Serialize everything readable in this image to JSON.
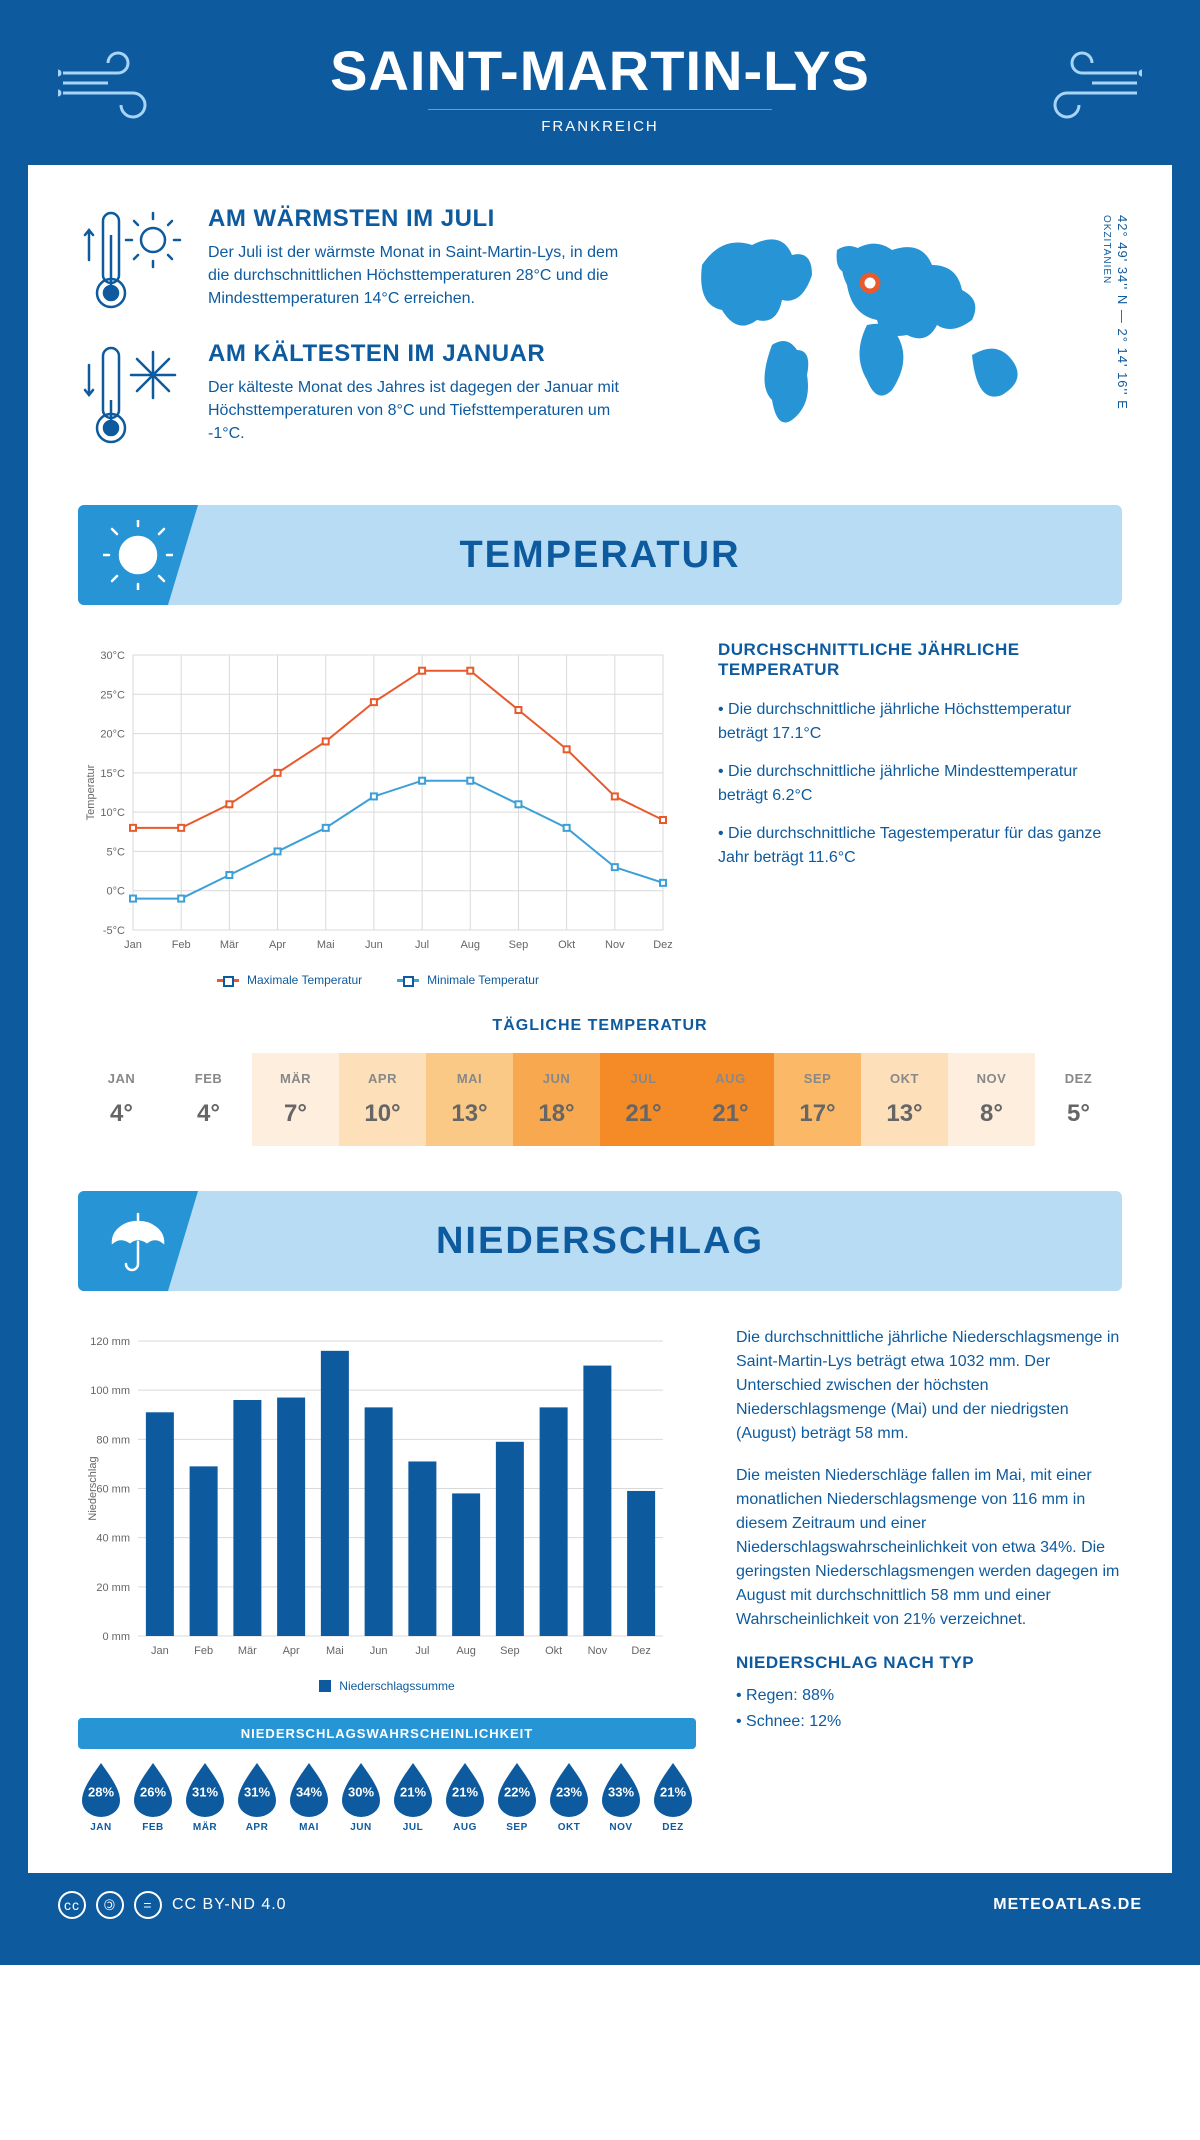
{
  "header": {
    "title": "SAINT-MARTIN-LYS",
    "country": "FRANKREICH"
  },
  "info": {
    "warm": {
      "title": "AM WÄRMSTEN IM JULI",
      "text": "Der Juli ist der wärmste Monat in Saint-Martin-Lys, in dem die durchschnittlichen Höchsttemperaturen 28°C und die Mindesttemperaturen 14°C erreichen."
    },
    "cold": {
      "title": "AM KÄLTESTEN IM JANUAR",
      "text": "Der kälteste Monat des Jahres ist dagegen der Januar mit Höchsttemperaturen von 8°C und Tiefsttemperaturen um -1°C."
    },
    "coords": "42° 49' 34'' N — 2° 14' 16'' E",
    "region": "OKZITANIEN"
  },
  "temp_section": {
    "title": "TEMPERATUR"
  },
  "temp_chart": {
    "type": "line",
    "months": [
      "Jan",
      "Feb",
      "Mär",
      "Apr",
      "Mai",
      "Jun",
      "Jul",
      "Aug",
      "Sep",
      "Okt",
      "Nov",
      "Dez"
    ],
    "max_values": [
      8,
      8,
      11,
      15,
      19,
      24,
      28,
      28,
      23,
      18,
      12,
      9
    ],
    "min_values": [
      -1,
      -1,
      2,
      5,
      8,
      12,
      14,
      14,
      11,
      8,
      3,
      1
    ],
    "max_color": "#e85a2c",
    "min_color": "#3d9fd8",
    "marker_size": 4,
    "line_width": 2,
    "ylim": [
      -5,
      30
    ],
    "ytick_step": 5,
    "grid_color": "#d9d9d9",
    "ylabel": "Temperatur",
    "legend_max": "Maximale Temperatur",
    "legend_min": "Minimale Temperatur"
  },
  "temp_text": {
    "title": "DURCHSCHNITTLICHE JÄHRLICHE TEMPERATUR",
    "b1": "• Die durchschnittliche jährliche Höchsttemperatur beträgt 17.1°C",
    "b2": "• Die durchschnittliche jährliche Mindesttemperatur beträgt 6.2°C",
    "b3": "• Die durchschnittliche Tagestemperatur für das ganze Jahr beträgt 11.6°C"
  },
  "daily": {
    "title": "TÄGLICHE TEMPERATUR",
    "months": [
      "JAN",
      "FEB",
      "MÄR",
      "APR",
      "MAI",
      "JUN",
      "JUL",
      "AUG",
      "SEP",
      "OKT",
      "NOV",
      "DEZ"
    ],
    "values": [
      "4°",
      "4°",
      "7°",
      "10°",
      "13°",
      "18°",
      "21°",
      "21°",
      "17°",
      "13°",
      "8°",
      "5°"
    ],
    "colors": [
      "#ffffff",
      "#ffffff",
      "#fdeede",
      "#fddfb9",
      "#fbc986",
      "#f8a94f",
      "#f58b27",
      "#f58b27",
      "#fbb968",
      "#fddfb9",
      "#fdeede",
      "#ffffff"
    ]
  },
  "precip_section": {
    "title": "NIEDERSCHLAG"
  },
  "precip_chart": {
    "type": "bar",
    "months": [
      "Jan",
      "Feb",
      "Mär",
      "Apr",
      "Mai",
      "Jun",
      "Jul",
      "Aug",
      "Sep",
      "Okt",
      "Nov",
      "Dez"
    ],
    "values": [
      91,
      69,
      96,
      97,
      116,
      93,
      71,
      58,
      79,
      93,
      110,
      59
    ],
    "bar_color": "#0d5a9e",
    "ylim": [
      0,
      120
    ],
    "ytick_step": 20,
    "ylabel": "Niederschlag",
    "grid_color": "#d9d9d9",
    "legend": "Niederschlagssumme"
  },
  "precip_text": {
    "p1": "Die durchschnittliche jährliche Niederschlagsmenge in Saint-Martin-Lys beträgt etwa 1032 mm. Der Unterschied zwischen der höchsten Niederschlagsmenge (Mai) und der niedrigsten (August) beträgt 58 mm.",
    "p2": "Die meisten Niederschläge fallen im Mai, mit einer monatlichen Niederschlagsmenge von 116 mm in diesem Zeitraum und einer Niederschlagswahrscheinlichkeit von etwa 34%. Die geringsten Niederschlagsmengen werden dagegen im August mit durchschnittlich 58 mm und einer Wahrscheinlichkeit von 21% verzeichnet.",
    "type_title": "NIEDERSCHLAG NACH TYP",
    "type1": "• Regen: 88%",
    "type2": "• Schnee: 12%"
  },
  "prob": {
    "title": "NIEDERSCHLAGSWAHRSCHEINLICHKEIT",
    "months": [
      "JAN",
      "FEB",
      "MÄR",
      "APR",
      "MAI",
      "JUN",
      "JUL",
      "AUG",
      "SEP",
      "OKT",
      "NOV",
      "DEZ"
    ],
    "values": [
      "28%",
      "26%",
      "31%",
      "31%",
      "34%",
      "30%",
      "21%",
      "21%",
      "22%",
      "23%",
      "33%",
      "21%"
    ],
    "drop_color": "#0d5a9e"
  },
  "footer": {
    "license": "CC BY-ND 4.0",
    "site": "METEOATLAS.DE"
  }
}
